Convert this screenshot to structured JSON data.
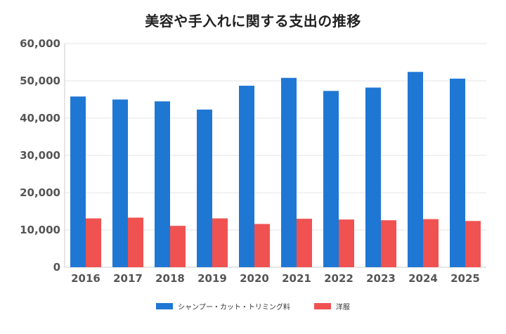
{
  "chart_data": {
    "type": "bar",
    "title": "美容や手入れに関する支出の推移",
    "categories": [
      "2016",
      "2017",
      "2018",
      "2019",
      "2020",
      "2021",
      "2022",
      "2023",
      "2024",
      "2025"
    ],
    "series": [
      {
        "name": "シャンプー・カット・トリミング料",
        "color": "#1f77d4",
        "values": [
          45800,
          45000,
          44500,
          42300,
          48700,
          50800,
          47300,
          48200,
          52400,
          50600
        ]
      },
      {
        "name": "洋服",
        "color": "#f05252",
        "values": [
          13100,
          13300,
          11100,
          13100,
          11600,
          13000,
          12800,
          12600,
          12900,
          12400
        ]
      }
    ],
    "ylim": [
      0,
      60000
    ],
    "yticks": [
      "0",
      "10,000",
      "20,000",
      "30,000",
      "40,000",
      "50,000",
      "60,000"
    ],
    "grid": true,
    "legend_position": "bottom"
  }
}
